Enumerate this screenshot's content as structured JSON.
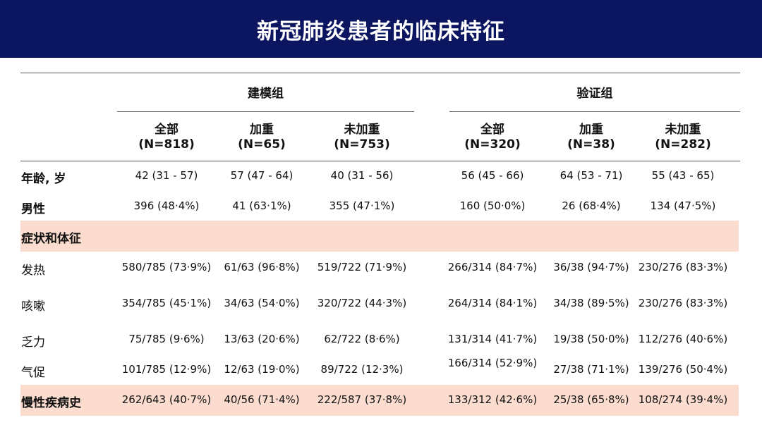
{
  "title": "新冠肺炎患者的临床特征",
  "groups": [
    {
      "label": "建模组"
    },
    {
      "label": "验证组"
    }
  ],
  "columns": [
    {
      "name": "全部",
      "n": "(N=818)"
    },
    {
      "name": "加重",
      "n": "(N=65)"
    },
    {
      "name": "未加重",
      "n": "(N=753)"
    },
    {
      "name": "全部",
      "n": "(N=320)"
    },
    {
      "name": "加重",
      "n": "(N=38)"
    },
    {
      "name": "未加重",
      "n": "(N=282)"
    }
  ],
  "rows": [
    {
      "label": "年龄, 岁",
      "bold": true,
      "values": [
        "42 (31 - 57)",
        "57 (47 - 64)",
        "40 (31 - 56)",
        "56 (45 - 66)",
        "64 (53 - 71)",
        "55 (43 - 65)"
      ]
    },
    {
      "label": "男性",
      "bold": true,
      "values": [
        "396 (48·4%)",
        "41 (63·1%)",
        "355 (47·1%)",
        "160 (50·0%)",
        "26 (68·4%)",
        "134 (47·5%)"
      ]
    },
    {
      "label": "症状和体征",
      "bold": true,
      "section": true,
      "values": []
    },
    {
      "label": "发热",
      "bold": false,
      "values": [
        "580/785 (73·9%)",
        "61/63 (96·8%)",
        "519/722 (71·9%)",
        "266/314 (84·7%)",
        "36/38 (94·7%)",
        "230/276 (83·3%)"
      ]
    },
    {
      "label": "咳嗽",
      "bold": false,
      "values": [
        "354/785 (45·1%)",
        "34/63 (54·0%)",
        "320/722 (44·3%)",
        "264/314 (84·1%)",
        "34/38 (89·5%)",
        "230/276 (83·3%)"
      ]
    },
    {
      "label": "乏力",
      "bold": false,
      "values": [
        "75/785 (9·6%)",
        "13/63 (20·6%)",
        "62/722 (8·6%)",
        "131/314 (41·7%)",
        "19/38 (50·0%)",
        "112/276 (40·6%)"
      ]
    },
    {
      "label": "气促",
      "bold": false,
      "values": [
        "101/785 (12·9%)",
        "12/63 (19·0%)",
        "89/722 (12·3%)",
        "166/314 (52·9%)",
        "27/38 (71·1%)",
        "139/276 (50·4%)"
      ]
    },
    {
      "label": "慢性疾病史",
      "bold": true,
      "section": true,
      "values": [
        "262/643 (40·7%)",
        "40/56 (71·4%)",
        "222/587 (37·8%)",
        "133/312 (42·6%)",
        "25/38 (65·8%)",
        "108/274 (39·4%)"
      ]
    }
  ],
  "colors": {
    "banner": "#0b1560",
    "band": "#fbdccf"
  }
}
